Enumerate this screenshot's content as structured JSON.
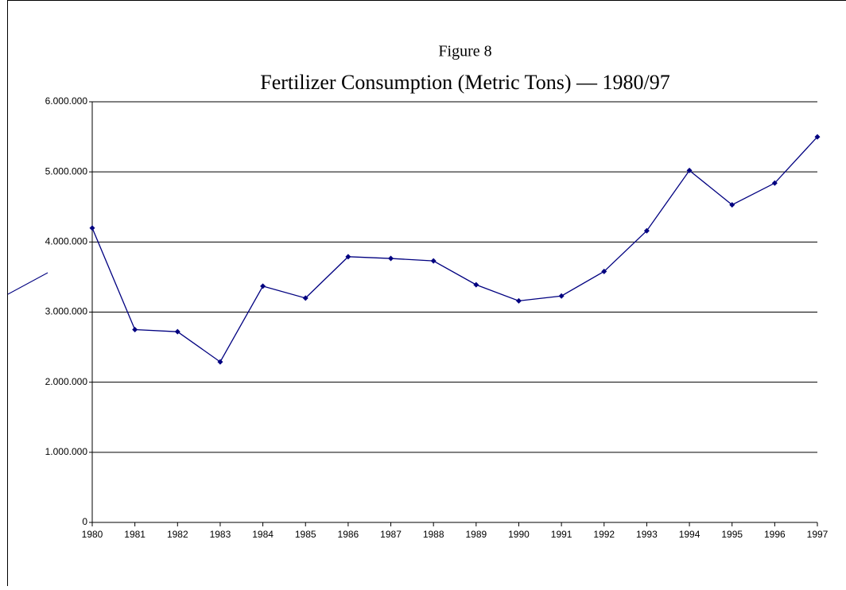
{
  "chart_data": {
    "type": "line",
    "title": "Figure 8",
    "subtitle": "Fertilizer Consumption (Metric Tons) — 1980/97",
    "categories": [
      "1980",
      "1981",
      "1982",
      "1983",
      "1984",
      "1985",
      "1986",
      "1987",
      "1988",
      "1989",
      "1990",
      "1991",
      "1992",
      "1993",
      "1994",
      "1995",
      "1996",
      "1997"
    ],
    "series": [
      {
        "color": "#000080",
        "values": [
          4200000,
          2750000,
          2720000,
          2290000,
          3370000,
          3200000,
          3790000,
          3765000,
          3730000,
          3390000,
          3160000,
          3230000,
          3580000,
          4160000,
          5020000,
          4530000,
          4840000,
          5500000
        ]
      }
    ],
    "ylim": [
      0,
      6000000
    ],
    "yticks": [
      0,
      {
        "value": 1000000,
        "label": "1.000.000"
      },
      {
        "value": 2000000,
        "label": "2.000.000"
      },
      {
        "value": 3000000,
        "label": "3.000.000"
      },
      {
        "value": 4000000,
        "label": "4.000.000"
      },
      {
        "value": 5000000,
        "label": "5.000.000"
      },
      {
        "value": 6000000,
        "label": "6.000.000"
      }
    ],
    "grid": true
  }
}
